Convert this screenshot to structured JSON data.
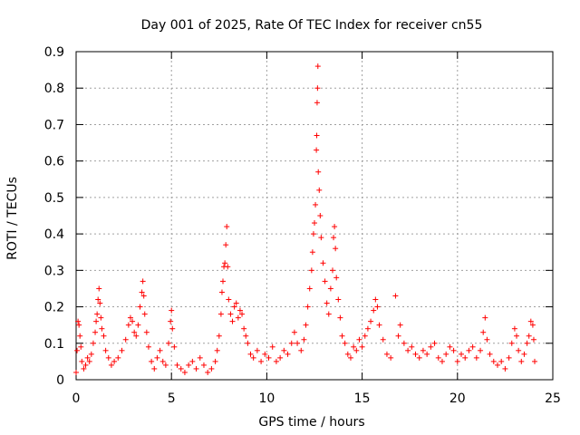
{
  "page": {
    "title": "Day 001 of 2025, Rate Of TEC Index for receiver cn55"
  },
  "chart_data": {
    "type": "scatter",
    "title": "Day 001 of 2025, Rate Of TEC Index for receiver cn55",
    "xlabel": "GPS time / hours",
    "ylabel": "ROTI / TECUs",
    "xlim": [
      0,
      25
    ],
    "ylim": [
      0,
      0.9
    ],
    "xticks": [
      0,
      5,
      10,
      15,
      20,
      25
    ],
    "yticks": [
      0,
      0.1,
      0.2,
      0.3,
      0.4,
      0.5,
      0.6,
      0.7,
      0.8,
      0.9
    ],
    "xtick_labels": [
      "0",
      "5",
      "10",
      "15",
      "20",
      "25"
    ],
    "ytick_labels": [
      "0",
      "0.1",
      "0.2",
      "0.3",
      "0.4",
      "0.5",
      "0.6",
      "0.7",
      "0.8",
      "0.9"
    ],
    "grid": true,
    "marker": "+",
    "color": "#ff0000",
    "series": [
      {
        "name": "ROTI",
        "points": [
          [
            0.0,
            0.02
          ],
          [
            0.05,
            0.08
          ],
          [
            0.1,
            0.16
          ],
          [
            0.15,
            0.15
          ],
          [
            0.2,
            0.12
          ],
          [
            0.25,
            0.09
          ],
          [
            0.3,
            0.05
          ],
          [
            0.4,
            0.03
          ],
          [
            0.5,
            0.04
          ],
          [
            0.6,
            0.06
          ],
          [
            0.7,
            0.05
          ],
          [
            0.8,
            0.07
          ],
          [
            0.9,
            0.1
          ],
          [
            1.0,
            0.13
          ],
          [
            1.05,
            0.16
          ],
          [
            1.1,
            0.18
          ],
          [
            1.15,
            0.22
          ],
          [
            1.2,
            0.25
          ],
          [
            1.25,
            0.21
          ],
          [
            1.3,
            0.17
          ],
          [
            1.35,
            0.14
          ],
          [
            1.45,
            0.12
          ],
          [
            1.55,
            0.08
          ],
          [
            1.7,
            0.06
          ],
          [
            1.85,
            0.04
          ],
          [
            2.0,
            0.05
          ],
          [
            2.2,
            0.06
          ],
          [
            2.4,
            0.08
          ],
          [
            2.6,
            0.11
          ],
          [
            2.75,
            0.15
          ],
          [
            2.85,
            0.17
          ],
          [
            2.95,
            0.16
          ],
          [
            3.05,
            0.13
          ],
          [
            3.15,
            0.12
          ],
          [
            3.25,
            0.15
          ],
          [
            3.35,
            0.2
          ],
          [
            3.45,
            0.24
          ],
          [
            3.5,
            0.27
          ],
          [
            3.55,
            0.23
          ],
          [
            3.6,
            0.18
          ],
          [
            3.7,
            0.13
          ],
          [
            3.8,
            0.09
          ],
          [
            3.95,
            0.05
          ],
          [
            4.1,
            0.03
          ],
          [
            4.25,
            0.06
          ],
          [
            4.4,
            0.08
          ],
          [
            4.55,
            0.05
          ],
          [
            4.7,
            0.04
          ],
          [
            4.85,
            0.1
          ],
          [
            4.95,
            0.16
          ],
          [
            5.0,
            0.19
          ],
          [
            5.05,
            0.14
          ],
          [
            5.15,
            0.09
          ],
          [
            5.3,
            0.04
          ],
          [
            5.5,
            0.03
          ],
          [
            5.7,
            0.02
          ],
          [
            5.9,
            0.04
          ],
          [
            6.1,
            0.05
          ],
          [
            6.3,
            0.03
          ],
          [
            6.5,
            0.06
          ],
          [
            6.7,
            0.04
          ],
          [
            6.9,
            0.02
          ],
          [
            7.1,
            0.03
          ],
          [
            7.3,
            0.05
          ],
          [
            7.4,
            0.08
          ],
          [
            7.5,
            0.12
          ],
          [
            7.6,
            0.18
          ],
          [
            7.65,
            0.24
          ],
          [
            7.7,
            0.27
          ],
          [
            7.75,
            0.31
          ],
          [
            7.8,
            0.32
          ],
          [
            7.85,
            0.37
          ],
          [
            7.9,
            0.42
          ],
          [
            7.95,
            0.31
          ],
          [
            8.0,
            0.22
          ],
          [
            8.1,
            0.18
          ],
          [
            8.2,
            0.16
          ],
          [
            8.3,
            0.2
          ],
          [
            8.4,
            0.21
          ],
          [
            8.5,
            0.17
          ],
          [
            8.6,
            0.19
          ],
          [
            8.7,
            0.18
          ],
          [
            8.8,
            0.14
          ],
          [
            8.9,
            0.12
          ],
          [
            9.0,
            0.1
          ],
          [
            9.15,
            0.07
          ],
          [
            9.3,
            0.06
          ],
          [
            9.5,
            0.08
          ],
          [
            9.7,
            0.05
          ],
          [
            9.9,
            0.07
          ],
          [
            10.1,
            0.06
          ],
          [
            10.3,
            0.09
          ],
          [
            10.5,
            0.05
          ],
          [
            10.7,
            0.06
          ],
          [
            10.9,
            0.08
          ],
          [
            11.1,
            0.07
          ],
          [
            11.3,
            0.1
          ],
          [
            11.45,
            0.13
          ],
          [
            11.6,
            0.1
          ],
          [
            11.8,
            0.08
          ],
          [
            11.95,
            0.11
          ],
          [
            12.05,
            0.15
          ],
          [
            12.15,
            0.2
          ],
          [
            12.25,
            0.25
          ],
          [
            12.35,
            0.3
          ],
          [
            12.4,
            0.35
          ],
          [
            12.45,
            0.4
          ],
          [
            12.5,
            0.43
          ],
          [
            12.55,
            0.48
          ],
          [
            12.6,
            0.63
          ],
          [
            12.62,
            0.67
          ],
          [
            12.64,
            0.76
          ],
          [
            12.66,
            0.8
          ],
          [
            12.68,
            0.86
          ],
          [
            12.7,
            0.57
          ],
          [
            12.75,
            0.52
          ],
          [
            12.8,
            0.45
          ],
          [
            12.85,
            0.39
          ],
          [
            12.95,
            0.32
          ],
          [
            13.05,
            0.27
          ],
          [
            13.15,
            0.21
          ],
          [
            13.25,
            0.18
          ],
          [
            13.35,
            0.25
          ],
          [
            13.45,
            0.3
          ],
          [
            13.5,
            0.39
          ],
          [
            13.55,
            0.42
          ],
          [
            13.6,
            0.36
          ],
          [
            13.65,
            0.28
          ],
          [
            13.75,
            0.22
          ],
          [
            13.85,
            0.17
          ],
          [
            13.95,
            0.12
          ],
          [
            14.1,
            0.1
          ],
          [
            14.25,
            0.07
          ],
          [
            14.4,
            0.06
          ],
          [
            14.55,
            0.09
          ],
          [
            14.7,
            0.08
          ],
          [
            14.85,
            0.11
          ],
          [
            15.0,
            0.09
          ],
          [
            15.15,
            0.12
          ],
          [
            15.3,
            0.14
          ],
          [
            15.45,
            0.16
          ],
          [
            15.6,
            0.19
          ],
          [
            15.7,
            0.22
          ],
          [
            15.8,
            0.2
          ],
          [
            15.9,
            0.15
          ],
          [
            16.1,
            0.11
          ],
          [
            16.3,
            0.07
          ],
          [
            16.5,
            0.06
          ],
          [
            16.75,
            0.23
          ],
          [
            16.9,
            0.12
          ],
          [
            17.0,
            0.15
          ],
          [
            17.2,
            0.1
          ],
          [
            17.4,
            0.08
          ],
          [
            17.6,
            0.09
          ],
          [
            17.8,
            0.07
          ],
          [
            18.0,
            0.06
          ],
          [
            18.2,
            0.08
          ],
          [
            18.4,
            0.07
          ],
          [
            18.6,
            0.09
          ],
          [
            18.8,
            0.1
          ],
          [
            19.0,
            0.06
          ],
          [
            19.2,
            0.05
          ],
          [
            19.4,
            0.07
          ],
          [
            19.6,
            0.09
          ],
          [
            19.8,
            0.08
          ],
          [
            20.0,
            0.05
          ],
          [
            20.2,
            0.07
          ],
          [
            20.4,
            0.06
          ],
          [
            20.6,
            0.08
          ],
          [
            20.8,
            0.09
          ],
          [
            21.0,
            0.06
          ],
          [
            21.2,
            0.08
          ],
          [
            21.35,
            0.13
          ],
          [
            21.45,
            0.17
          ],
          [
            21.55,
            0.11
          ],
          [
            21.7,
            0.07
          ],
          [
            21.9,
            0.05
          ],
          [
            22.1,
            0.04
          ],
          [
            22.3,
            0.05
          ],
          [
            22.5,
            0.03
          ],
          [
            22.7,
            0.06
          ],
          [
            22.85,
            0.1
          ],
          [
            23.0,
            0.14
          ],
          [
            23.1,
            0.12
          ],
          [
            23.2,
            0.08
          ],
          [
            23.35,
            0.05
          ],
          [
            23.5,
            0.07
          ],
          [
            23.65,
            0.1
          ],
          [
            23.75,
            0.12
          ],
          [
            23.85,
            0.16
          ],
          [
            23.95,
            0.15
          ],
          [
            24.0,
            0.11
          ],
          [
            24.05,
            0.05
          ]
        ]
      }
    ]
  }
}
